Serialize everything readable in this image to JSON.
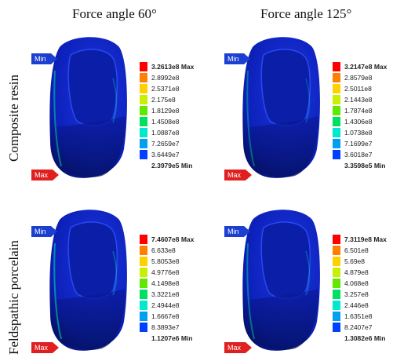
{
  "columns": [
    "Force angle 60°",
    "Force angle 125°"
  ],
  "rows": [
    "Composite resin",
    "Feldspathic porcelain"
  ],
  "scale_colors": [
    "#ff0000",
    "#ff8000",
    "#ffd000",
    "#c8f000",
    "#60e800",
    "#00e060",
    "#00e8d0",
    "#00a0f0",
    "#0040ff"
  ],
  "probe_labels": {
    "min": "Min",
    "max": "Max"
  },
  "legends": [
    [
      "3.2613e8 Max",
      "2.8992e8",
      "2.5371e8",
      "2.175e8",
      "1.8129e8",
      "1.4508e8",
      "1.0887e8",
      "7.2659e7",
      "3.6449e7",
      "2.3979e5 Min"
    ],
    [
      "3.2147e8 Max",
      "2.8579e8",
      "2.5011e8",
      "2.1443e8",
      "1.7874e8",
      "1.4306e8",
      "1.0738e8",
      "7.1699e7",
      "3.6018e7",
      "3.3598e5 Min"
    ],
    [
      "7.4607e8 Max",
      "6.633e8",
      "5.8053e8",
      "4.9776e8",
      "4.1498e8",
      "3.3221e8",
      "2.4944e8",
      "1.6667e8",
      "8.3893e7",
      "1.1207e6 Min"
    ],
    [
      "7.3119e8 Max",
      "6.501e8",
      "5.69e8",
      "4.879e8",
      "4.068e8",
      "3.257e8",
      "2.446e8",
      "1.6351e8",
      "8.2407e7",
      "1.3082e6 Min"
    ]
  ]
}
